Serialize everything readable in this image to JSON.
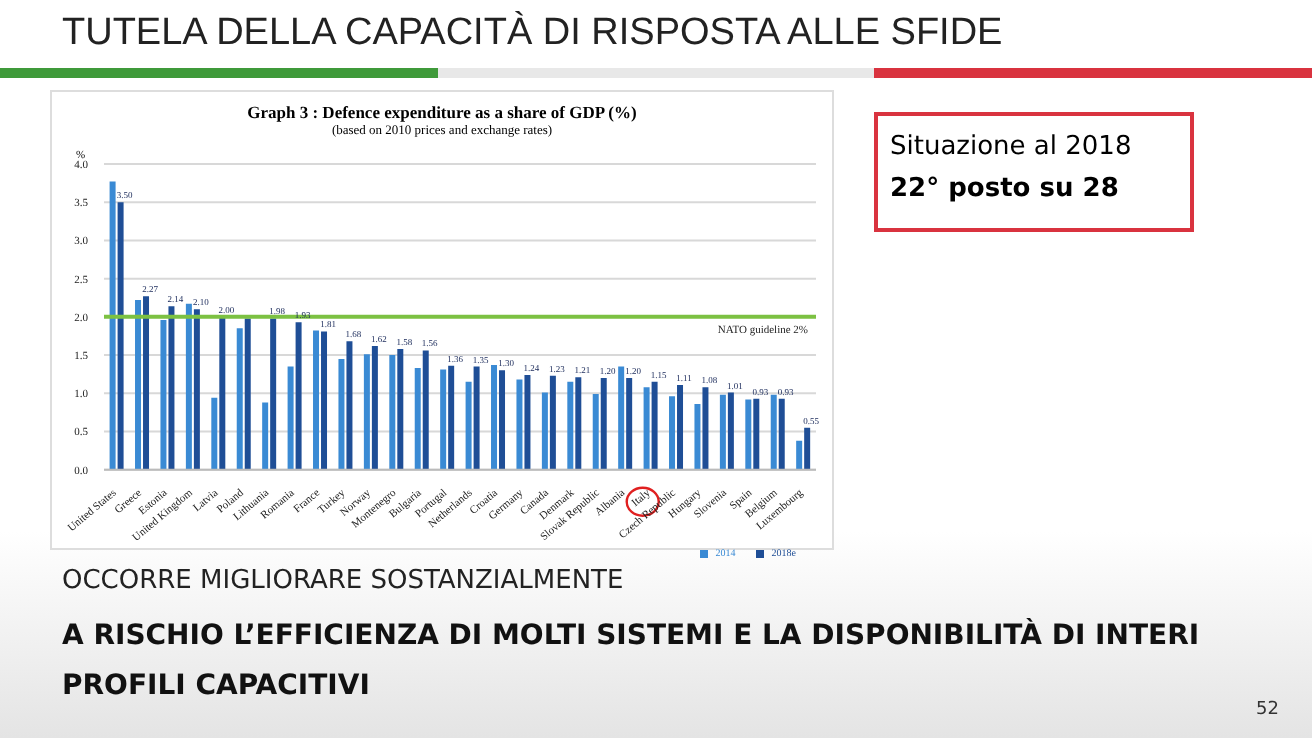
{
  "chart_data": {
    "type": "bar",
    "title": "Graph 3 : Defence expenditure as a share of GDP (%)",
    "subtitle": "(based on 2010 prices and exchange rates)",
    "ylabel": "%",
    "categories": [
      "United States",
      "Greece",
      "Estonia",
      "United Kingdom",
      "Latvia",
      "Poland",
      "Lithuania",
      "Romania",
      "France",
      "Turkey",
      "Norway",
      "Montenegro",
      "Bulgaria",
      "Portugal",
      "Netherlands",
      "Croatia",
      "Germany",
      "Canada",
      "Denmark",
      "Slovak Republic",
      "Albania",
      "Italy",
      "Czech Republic",
      "Hungary",
      "Slovenia",
      "Spain",
      "Belgium",
      "Luxembourg"
    ],
    "series": [
      {
        "name": "2014",
        "color": "#3a8ad4",
        "values": [
          3.77,
          2.22,
          1.96,
          2.17,
          0.94,
          1.85,
          0.88,
          1.35,
          1.82,
          1.45,
          1.51,
          1.5,
          1.33,
          1.31,
          1.15,
          1.37,
          1.18,
          1.01,
          1.15,
          0.99,
          1.35,
          1.08,
          0.96,
          0.86,
          0.98,
          0.92,
          0.98,
          0.38
        ]
      },
      {
        "name": "2018e",
        "color": "#1f4e96",
        "values": [
          3.5,
          2.27,
          2.14,
          2.1,
          2.0,
          1.98,
          1.98,
          1.93,
          1.81,
          1.68,
          1.62,
          1.58,
          1.56,
          1.36,
          1.35,
          1.3,
          1.24,
          1.23,
          1.21,
          1.2,
          1.2,
          1.15,
          1.11,
          1.08,
          1.01,
          0.93,
          0.93,
          0.55
        ],
        "value_labels": [
          "3.50",
          "2.27",
          "2.14",
          "2.10",
          "2.00",
          null,
          "1.98",
          "1.93",
          "1.81",
          "1.68",
          "1.62",
          "1.58",
          "1.56",
          "1.36",
          "1.35",
          "1.30",
          "1.24",
          "1.23",
          "1.21",
          "1.20",
          "1.20",
          "1.15",
          "1.11",
          "1.08",
          "1.01",
          "0.93",
          "0.93",
          "0.55"
        ]
      }
    ],
    "ylim": [
      0,
      4
    ],
    "yticks": [
      {
        "value": 0,
        "label": "0.0"
      },
      {
        "value": 0.5,
        "label": "0.5"
      },
      {
        "value": 1,
        "label": "1.0"
      },
      {
        "value": 1.5,
        "label": "1.5"
      },
      {
        "value": 2,
        "label": "2.0"
      },
      {
        "value": 2.5,
        "label": "2.5"
      },
      {
        "value": 3,
        "label": "3.0"
      },
      {
        "value": 3.5,
        "label": "3.5"
      },
      {
        "value": 4,
        "label": "4.0"
      }
    ],
    "grid": "y",
    "legend": "bottom right",
    "ref_lines": [
      {
        "axis": "y",
        "value": 2,
        "label": "NATO guideline 2%",
        "color": "#7cc142"
      }
    ],
    "annotations": [
      "TUTELA DELLA CAPACITÀ DI RISPOSTA ALLE SFIDE",
      "Situazione al 2018",
      "22° posto su 28",
      "OCCORRE MIGLIORARE SOSTANZIALMENTE",
      "A RISCHIO L’EFFICIENZA DI MOLTI SISTEMI E LA DISPONIBILITÀ DI INTERI PROFILI CAPACITIVI",
      "52"
    ]
  }
}
